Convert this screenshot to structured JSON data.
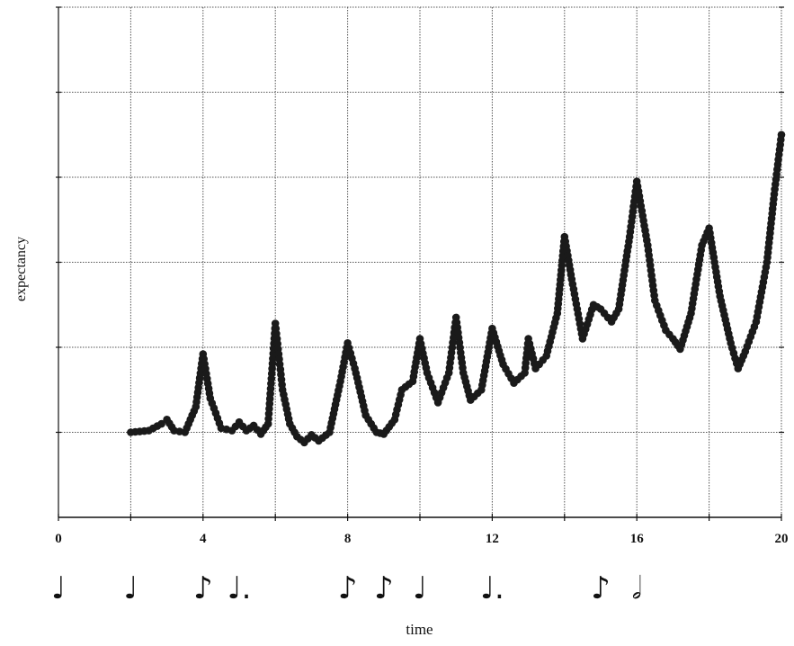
{
  "chart_data": {
    "type": "scatter",
    "xlabel": "time",
    "ylabel": "expectancy",
    "xlim": [
      0,
      20
    ],
    "x_ticks": [
      0,
      4,
      8,
      12,
      16,
      20
    ],
    "y_ticks_labeled": false,
    "grid": true,
    "grid_x_step": 2,
    "grid_y_lines": 6,
    "marker": "filled-circle",
    "marker_color": "#1a1a1a",
    "series": [
      {
        "points": [
          [
            2.0,
            1.0
          ],
          [
            2.5,
            1.02
          ],
          [
            2.85,
            1.1
          ],
          [
            3.0,
            1.15
          ],
          [
            3.2,
            1.02
          ],
          [
            3.5,
            1.0
          ],
          [
            3.8,
            1.3
          ],
          [
            4.0,
            1.92
          ],
          [
            4.2,
            1.4
          ],
          [
            4.5,
            1.05
          ],
          [
            4.8,
            1.02
          ],
          [
            5.0,
            1.12
          ],
          [
            5.2,
            1.02
          ],
          [
            5.4,
            1.08
          ],
          [
            5.6,
            0.98
          ],
          [
            5.8,
            1.1
          ],
          [
            6.0,
            2.28
          ],
          [
            6.2,
            1.5
          ],
          [
            6.4,
            1.1
          ],
          [
            6.6,
            0.95
          ],
          [
            6.8,
            0.88
          ],
          [
            7.0,
            0.97
          ],
          [
            7.2,
            0.9
          ],
          [
            7.5,
            1.0
          ],
          [
            7.8,
            1.6
          ],
          [
            8.0,
            2.05
          ],
          [
            8.2,
            1.75
          ],
          [
            8.5,
            1.2
          ],
          [
            8.8,
            1.0
          ],
          [
            9.0,
            0.98
          ],
          [
            9.3,
            1.15
          ],
          [
            9.5,
            1.5
          ],
          [
            9.8,
            1.6
          ],
          [
            10.0,
            2.1
          ],
          [
            10.2,
            1.7
          ],
          [
            10.5,
            1.35
          ],
          [
            10.8,
            1.7
          ],
          [
            11.0,
            2.35
          ],
          [
            11.2,
            1.7
          ],
          [
            11.4,
            1.38
          ],
          [
            11.7,
            1.5
          ],
          [
            12.0,
            2.22
          ],
          [
            12.3,
            1.8
          ],
          [
            12.6,
            1.58
          ],
          [
            12.9,
            1.7
          ],
          [
            13.0,
            2.1
          ],
          [
            13.2,
            1.75
          ],
          [
            13.5,
            1.9
          ],
          [
            13.8,
            2.4
          ],
          [
            14.0,
            3.3
          ],
          [
            14.2,
            2.8
          ],
          [
            14.5,
            2.1
          ],
          [
            14.8,
            2.5
          ],
          [
            15.0,
            2.45
          ],
          [
            15.3,
            2.3
          ],
          [
            15.5,
            2.45
          ],
          [
            15.8,
            3.3
          ],
          [
            16.0,
            3.95
          ],
          [
            16.3,
            3.2
          ],
          [
            16.5,
            2.55
          ],
          [
            16.8,
            2.2
          ],
          [
            17.0,
            2.1
          ],
          [
            17.2,
            1.98
          ],
          [
            17.5,
            2.4
          ],
          [
            17.8,
            3.2
          ],
          [
            18.0,
            3.4
          ],
          [
            18.3,
            2.6
          ],
          [
            18.6,
            2.05
          ],
          [
            18.8,
            1.75
          ],
          [
            19.0,
            1.95
          ],
          [
            19.3,
            2.3
          ],
          [
            19.6,
            3.0
          ],
          [
            19.8,
            3.8
          ],
          [
            20.0,
            4.5
          ]
        ]
      }
    ],
    "rhythm_notes": [
      {
        "time": 0,
        "glyph": "♩"
      },
      {
        "time": 2,
        "glyph": "♩"
      },
      {
        "time": 4,
        "glyph": "♪"
      },
      {
        "time": 5,
        "glyph": "♩."
      },
      {
        "time": 8,
        "glyph": "♪"
      },
      {
        "time": 9,
        "glyph": "♪"
      },
      {
        "time": 10,
        "glyph": "♩"
      },
      {
        "time": 12,
        "glyph": "♩."
      },
      {
        "time": 15,
        "glyph": "♪"
      },
      {
        "time": 16,
        "glyph": "𝅗𝅥"
      }
    ]
  }
}
